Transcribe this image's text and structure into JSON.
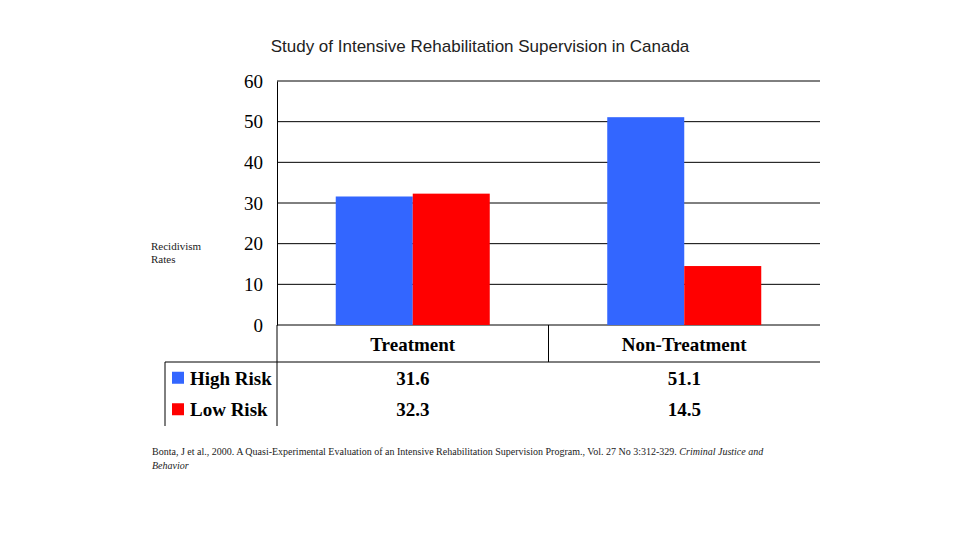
{
  "chart_data": {
    "type": "bar",
    "title": "Study of Intensive Rehabilitation Supervision in Canada",
    "y_label": "Recidivism Rates",
    "categories": [
      "Treatment",
      "Non-Treatment"
    ],
    "series": [
      {
        "name": "High Risk",
        "color": "#3366ff",
        "values": [
          31.6,
          51.1
        ]
      },
      {
        "name": "Low Risk",
        "color": "#ff0000",
        "values": [
          32.3,
          14.5
        ]
      }
    ],
    "ylim": [
      0,
      60
    ],
    "yticks": [
      0,
      10,
      20,
      30,
      40,
      50,
      60
    ],
    "grid": true,
    "annotations": [
      "Bonta, J et al., 2000. A Quasi-Experimental Evaluation of an Intensive Rehabilitation Supervision Program., Vol. 27 No 3:312-329.",
      "Criminal Justice and Behavior"
    ]
  }
}
